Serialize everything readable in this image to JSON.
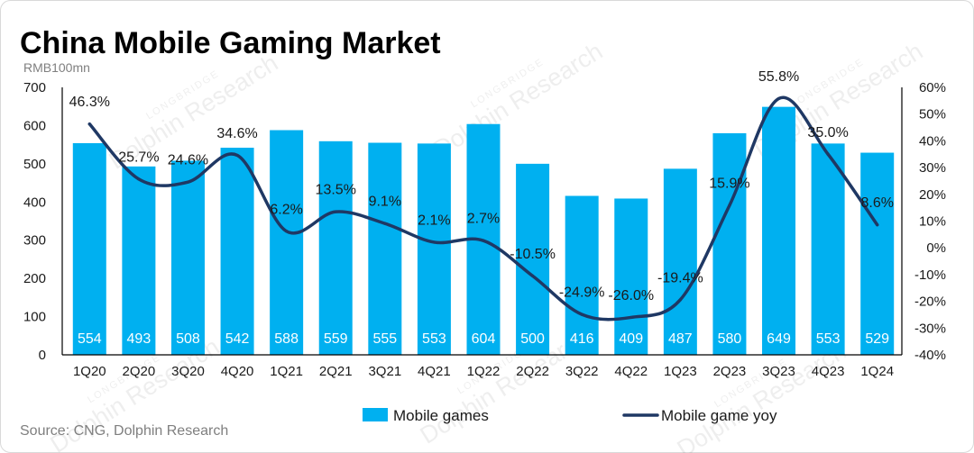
{
  "source": "Source: CNG, Dolphin Research",
  "watermark": {
    "brand": "LONGBRIDGE",
    "name": "Dolphin Research"
  },
  "colors": {
    "bars": "#00B0F0",
    "line": "#1F3864",
    "axis": "#000000",
    "label_text": "#1A1A1A",
    "bar_label_text": "#FFFFFF",
    "border": "#D9D9D9"
  },
  "chart_data": {
    "type": "bar",
    "title": "China Mobile Gaming Market",
    "ylabel": "RMB100mn",
    "xlabel": "",
    "categories": [
      "1Q20",
      "2Q20",
      "3Q20",
      "4Q20",
      "1Q21",
      "2Q21",
      "3Q21",
      "4Q21",
      "1Q22",
      "2Q22",
      "3Q22",
      "4Q22",
      "1Q23",
      "2Q23",
      "3Q23",
      "4Q23",
      "1Q24"
    ],
    "series": [
      {
        "name": "Mobile games",
        "type": "bar",
        "axis": "left",
        "values": [
          554,
          493,
          508,
          542,
          588,
          559,
          555,
          553,
          604,
          500,
          416,
          409,
          487,
          580,
          649,
          553,
          529
        ]
      },
      {
        "name": "Mobile game yoy",
        "type": "line",
        "axis": "right",
        "smooth": true,
        "values": [
          46.3,
          25.7,
          24.6,
          34.6,
          6.2,
          13.5,
          9.1,
          2.1,
          2.7,
          -10.5,
          -24.9,
          -26.0,
          -19.4,
          15.9,
          55.8,
          35.0,
          8.6
        ],
        "labels": [
          "46.3%",
          "25.7%",
          "24.6%",
          "34.6%",
          "6.2%",
          "13.5%",
          "9.1%",
          "2.1%",
          "2.7%",
          "-10.5%",
          "-24.9%",
          "-26.0%",
          "-19.4%",
          "15.9%",
          "55.8%",
          "35.0%",
          "8.6%"
        ]
      }
    ],
    "y_left": {
      "ylim": [
        0,
        700
      ],
      "ticks": [
        700,
        600,
        500,
        400,
        300,
        200,
        100,
        0
      ]
    },
    "y_right": {
      "ylim": [
        -40,
        60
      ],
      "ticks": [
        60,
        50,
        40,
        30,
        20,
        10,
        0,
        -10,
        -20,
        -30,
        -40
      ],
      "tick_labels": [
        "60%",
        "50%",
        "40%",
        "30%",
        "20%",
        "10%",
        "0%",
        "-10%",
        "-20%",
        "-30%",
        "-40%"
      ]
    },
    "grid": false,
    "legend": "bottom"
  }
}
